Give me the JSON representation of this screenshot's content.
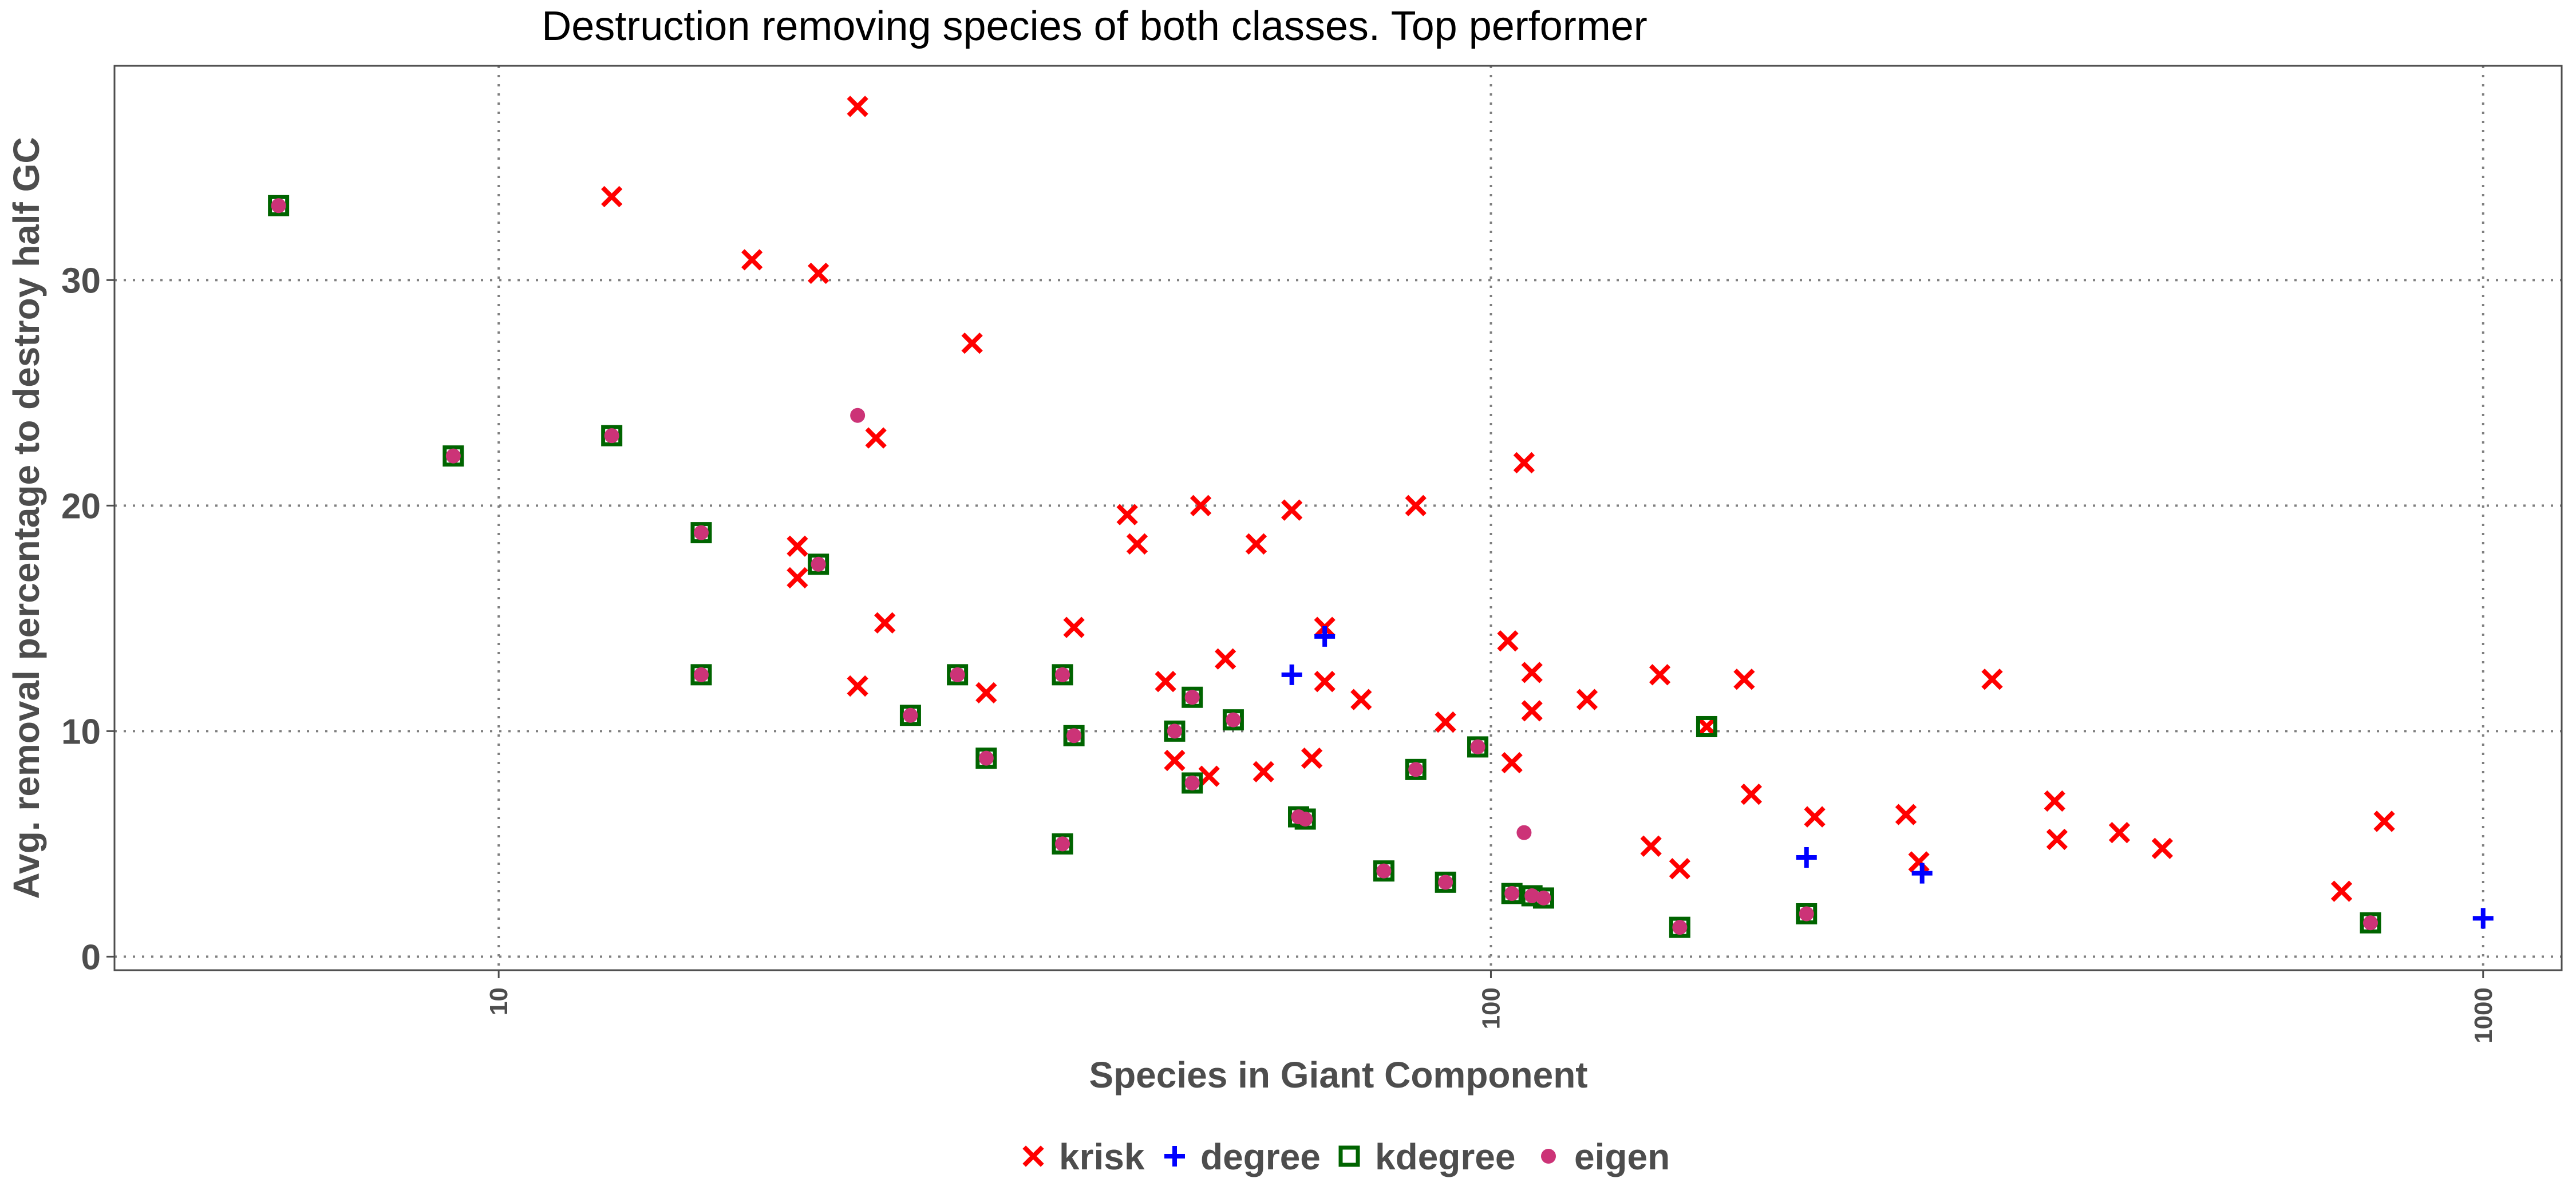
{
  "chart_data": {
    "type": "scatter",
    "title": "Destruction removing species of both classes. Top performer",
    "xlabel": "Species in Giant Component",
    "ylabel": "Avg. removal percentage to destroy half GC",
    "x_scale": "log10",
    "xlim": [
      4.1,
      1200
    ],
    "ylim": [
      -0.6,
      39.5
    ],
    "x_ticks": [
      10,
      100,
      1000
    ],
    "x_tick_labels": [
      "10",
      "100",
      "1000"
    ],
    "y_ticks": [
      0,
      10,
      20,
      30
    ],
    "y_tick_labels": [
      "0",
      "10",
      "20",
      "30"
    ],
    "grid": true,
    "legend_position": "bottom",
    "series": [
      {
        "name": "krisk",
        "color": "#ff0000",
        "marker": "x",
        "points": [
          [
            13,
            33.7
          ],
          [
            18,
            30.9
          ],
          [
            23,
            37.7
          ],
          [
            21,
            30.3
          ],
          [
            24,
            23.0
          ],
          [
            30,
            27.2
          ],
          [
            20,
            18.2
          ],
          [
            20,
            16.8
          ],
          [
            24.5,
            14.8
          ],
          [
            23,
            12.0
          ],
          [
            31,
            11.7
          ],
          [
            38,
            14.6
          ],
          [
            43,
            19.6
          ],
          [
            44,
            18.3
          ],
          [
            47,
            12.2
          ],
          [
            51,
            20.0
          ],
          [
            58,
            18.3
          ],
          [
            63,
            19.8
          ],
          [
            54,
            13.2
          ],
          [
            68,
            14.6
          ],
          [
            68,
            12.2
          ],
          [
            74,
            11.4
          ],
          [
            84,
            20.0
          ],
          [
            90,
            10.4
          ],
          [
            104,
            14.0
          ],
          [
            108,
            21.9
          ],
          [
            110,
            12.6
          ],
          [
            110,
            10.9
          ],
          [
            125,
            11.4
          ],
          [
            148,
            12.5
          ],
          [
            105,
            8.6
          ],
          [
            48,
            8.7
          ],
          [
            52,
            8.0
          ],
          [
            59,
            8.2
          ],
          [
            66,
            8.8
          ],
          [
            145,
            4.9
          ],
          [
            155,
            3.9
          ],
          [
            180,
            12.3
          ],
          [
            183,
            7.2
          ],
          [
            212,
            6.2
          ],
          [
            262,
            6.3
          ],
          [
            270,
            4.2
          ],
          [
            320,
            12.3
          ],
          [
            370,
            6.9
          ],
          [
            372,
            5.2
          ],
          [
            430,
            5.5
          ],
          [
            475,
            4.8
          ],
          [
            720,
            2.9
          ],
          [
            795,
            6.0
          ],
          [
            165,
            10.2
          ]
        ]
      },
      {
        "name": "degree",
        "color": "#0000ff",
        "marker": "+",
        "points": [
          [
            6,
            33.3
          ],
          [
            9,
            22.2
          ],
          [
            13,
            23.1
          ],
          [
            16,
            18.8
          ],
          [
            16,
            12.5
          ],
          [
            21,
            17.4
          ],
          [
            26,
            10.7
          ],
          [
            29,
            12.5
          ],
          [
            31,
            8.8
          ],
          [
            37,
            12.5
          ],
          [
            37,
            5.0
          ],
          [
            38,
            9.8
          ],
          [
            48,
            10.0
          ],
          [
            50,
            11.5
          ],
          [
            50,
            7.7
          ],
          [
            55,
            10.5
          ],
          [
            63,
            12.5
          ],
          [
            64,
            6.2
          ],
          [
            65,
            6.1
          ],
          [
            68,
            14.2
          ],
          [
            78,
            3.8
          ],
          [
            84,
            8.3
          ],
          [
            90,
            3.3
          ],
          [
            105,
            2.8
          ],
          [
            110,
            2.7
          ],
          [
            113,
            2.6
          ],
          [
            155,
            1.3
          ],
          [
            208,
            1.9
          ],
          [
            208,
            4.4
          ],
          [
            272,
            3.7
          ],
          [
            770,
            1.5
          ],
          [
            1000,
            1.7
          ]
        ]
      },
      {
        "name": "kdegree",
        "color": "#006400",
        "marker": "square-open",
        "points": [
          [
            6,
            33.3
          ],
          [
            9,
            22.2
          ],
          [
            13,
            23.1
          ],
          [
            16,
            18.8
          ],
          [
            16,
            12.5
          ],
          [
            21,
            17.4
          ],
          [
            26,
            10.7
          ],
          [
            29,
            12.5
          ],
          [
            31,
            8.8
          ],
          [
            37,
            12.5
          ],
          [
            37,
            5.0
          ],
          [
            38,
            9.8
          ],
          [
            48,
            10.0
          ],
          [
            50,
            11.5
          ],
          [
            50,
            7.7
          ],
          [
            55,
            10.5
          ],
          [
            64,
            6.2
          ],
          [
            65,
            6.1
          ],
          [
            78,
            3.8
          ],
          [
            84,
            8.3
          ],
          [
            90,
            3.3
          ],
          [
            97,
            9.3
          ],
          [
            105,
            2.8
          ],
          [
            110,
            2.7
          ],
          [
            113,
            2.6
          ],
          [
            155,
            1.3
          ],
          [
            165,
            10.2
          ],
          [
            208,
            1.9
          ],
          [
            770,
            1.5
          ]
        ]
      },
      {
        "name": "eigen",
        "color": "#cc3377",
        "marker": "dot",
        "points": [
          [
            6,
            33.3
          ],
          [
            9,
            22.2
          ],
          [
            13,
            23.1
          ],
          [
            16,
            18.8
          ],
          [
            16,
            12.5
          ],
          [
            21,
            17.4
          ],
          [
            23,
            24.0
          ],
          [
            26,
            10.7
          ],
          [
            29,
            12.5
          ],
          [
            31,
            8.8
          ],
          [
            37,
            12.5
          ],
          [
            37,
            5.0
          ],
          [
            38,
            9.8
          ],
          [
            48,
            10.0
          ],
          [
            50,
            11.5
          ],
          [
            50,
            7.7
          ],
          [
            55,
            10.5
          ],
          [
            64,
            6.2
          ],
          [
            65,
            6.1
          ],
          [
            78,
            3.8
          ],
          [
            84,
            8.3
          ],
          [
            90,
            3.3
          ],
          [
            97,
            9.3
          ],
          [
            105,
            2.8
          ],
          [
            108,
            5.5
          ],
          [
            110,
            2.7
          ],
          [
            113,
            2.6
          ],
          [
            155,
            1.3
          ],
          [
            208,
            1.9
          ],
          [
            770,
            1.5
          ]
        ]
      }
    ]
  }
}
